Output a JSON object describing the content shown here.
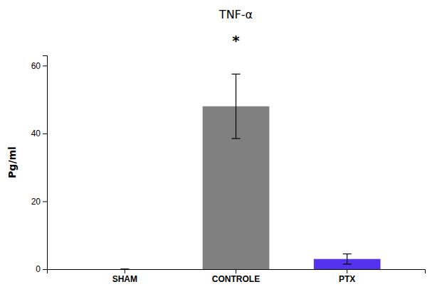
{
  "chart_data": {
    "type": "bar",
    "title": "TNF-α",
    "categories": [
      "SHAM",
      "CONTROLE",
      "PTX"
    ],
    "values": [
      0,
      48.0,
      3.0
    ],
    "errors": [
      0,
      9.5,
      1.5
    ],
    "colors": [
      "#808080",
      "#808080",
      "#5533EE"
    ],
    "ylabel": "Pg/ml",
    "ylim": [
      0,
      63
    ],
    "yticks": [
      0,
      20,
      40,
      60
    ],
    "annotations": [
      {
        "text": "*",
        "x": "CONTROLE"
      }
    ],
    "grid": false
  }
}
